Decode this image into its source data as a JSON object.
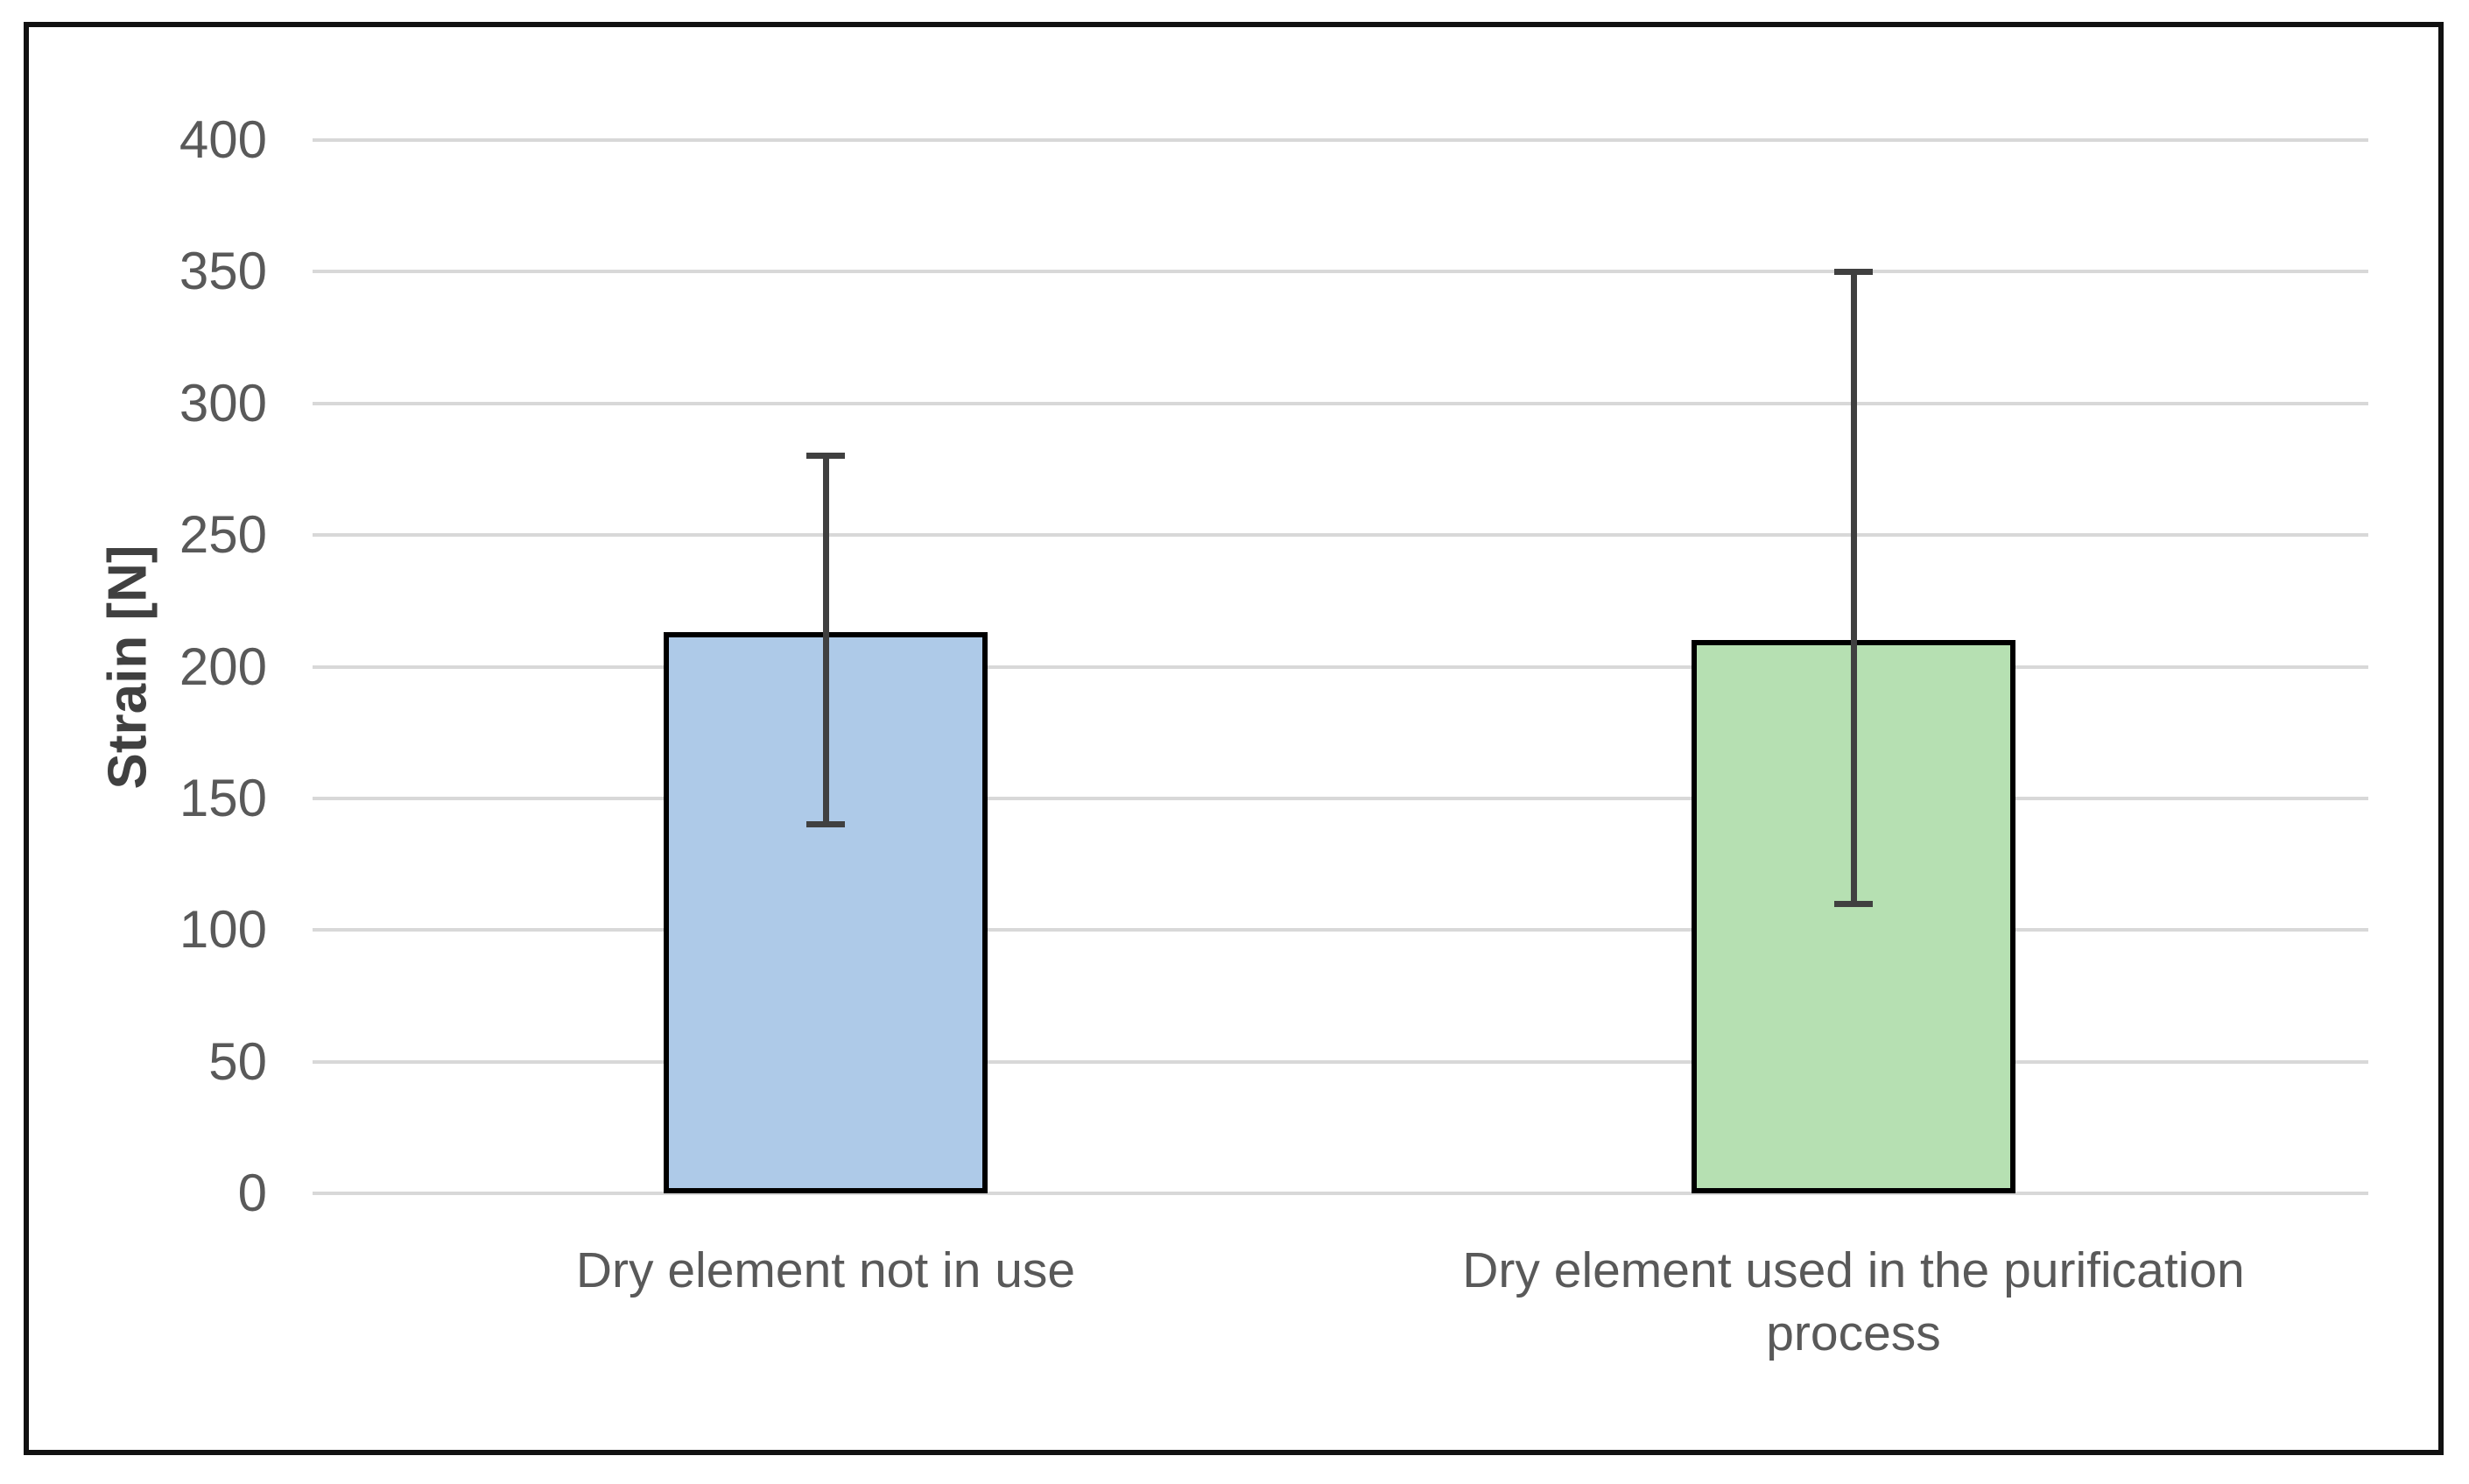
{
  "window": {
    "background_color": "#ffffff",
    "border_color": "#111111"
  },
  "chart_data": {
    "type": "bar",
    "title": "",
    "categories": [
      "Dry element not in use",
      "Dry element used in the purification process"
    ],
    "values": [
      213,
      210
    ],
    "error_low": [
      140,
      110
    ],
    "error_high": [
      280,
      350
    ],
    "bar_colors": [
      "#AECAE8",
      "#B6E0B2"
    ],
    "bar_border_color": "#000000",
    "error_bar_color": "#404040",
    "xlabel": "",
    "ylabel": "Strain [N]",
    "ylim": [
      0,
      400
    ],
    "yticks": [
      0,
      50,
      100,
      150,
      200,
      250,
      300,
      350,
      400
    ],
    "grid": true,
    "gridline_color": "#d8d8d8",
    "tick_label_color": "#595959",
    "axis_title_color": "#404040",
    "legend_position": "none"
  }
}
